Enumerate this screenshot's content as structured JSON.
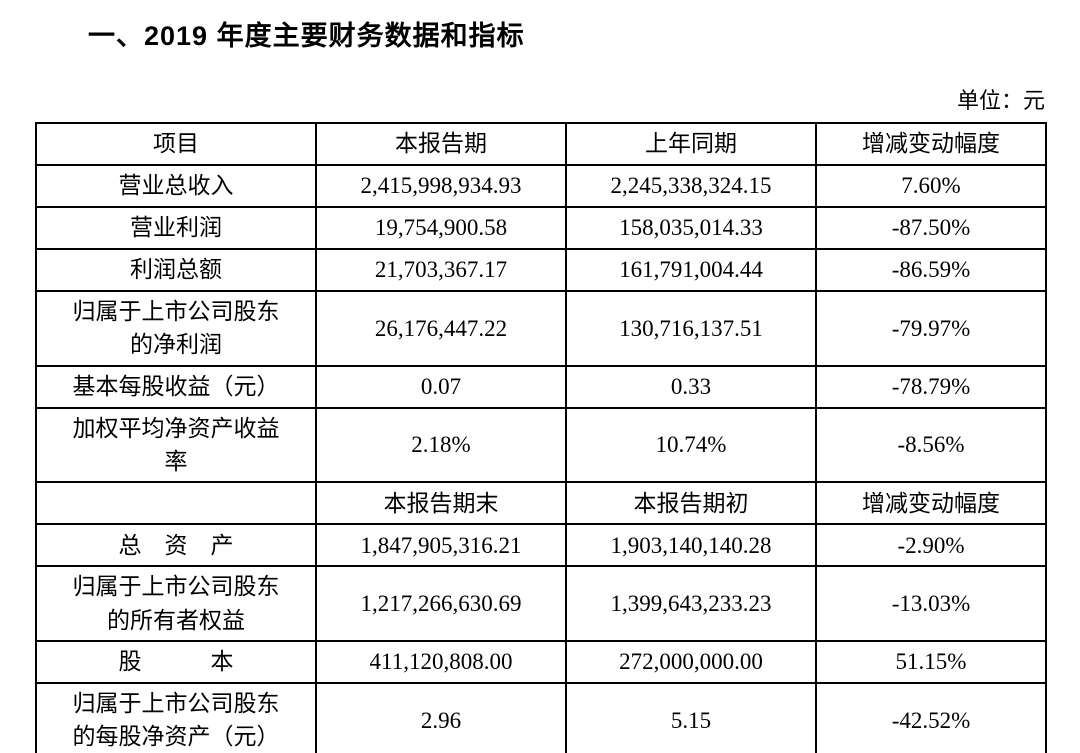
{
  "document": {
    "title": "一、2019 年度主要财务数据和指标",
    "unit_label": "单位：元"
  },
  "table": {
    "header_top": {
      "item": "项目",
      "current": "本报告期",
      "prior": "上年同期",
      "change": "增减变动幅度"
    },
    "rows_period": [
      {
        "item": "营业总收入",
        "current": "2,415,998,934.93",
        "prior": "2,245,338,324.15",
        "change": "7.60%"
      },
      {
        "item": "营业利润",
        "current": "19,754,900.58",
        "prior": "158,035,014.33",
        "change": "-87.50%"
      },
      {
        "item": "利润总额",
        "current": "21,703,367.17",
        "prior": "161,791,004.44",
        "change": "-86.59%"
      },
      {
        "item": "归属于上市公司股东\n的净利润",
        "current": "26,176,447.22",
        "prior": "130,716,137.51",
        "change": "-79.97%"
      },
      {
        "item": "基本每股收益（元）",
        "current": "0.07",
        "prior": "0.33",
        "change": "-78.79%"
      },
      {
        "item": "加权平均净资产收益\n率",
        "current": "2.18%",
        "prior": "10.74%",
        "change": "-8.56%"
      }
    ],
    "header_mid": {
      "item": "",
      "current": "本报告期末",
      "prior": "本报告期初",
      "change": "增减变动幅度"
    },
    "rows_balance": [
      {
        "item": "总　资　产",
        "current": "1,847,905,316.21",
        "prior": "1,903,140,140.28",
        "change": "-2.90%"
      },
      {
        "item": "归属于上市公司股东\n的所有者权益",
        "current": "1,217,266,630.69",
        "prior": "1,399,643,233.23",
        "change": "-13.03%"
      },
      {
        "item": "股　　　本",
        "current": "411,120,808.00",
        "prior": "272,000,000.00",
        "change": "51.15%"
      },
      {
        "item": "归属于上市公司股东\n的每股净资产（元）",
        "current": "2.96",
        "prior": "5.15",
        "change": "-42.52%"
      }
    ]
  }
}
